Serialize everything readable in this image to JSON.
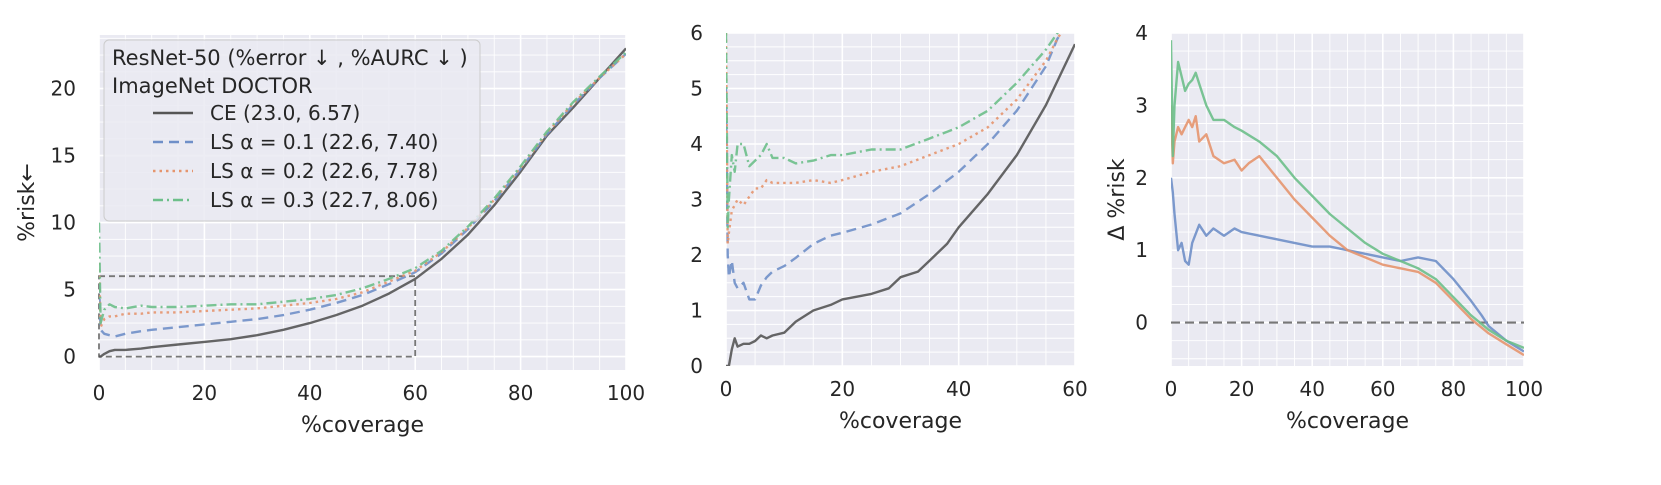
{
  "chart_data": [
    {
      "type": "line",
      "xlabel": "%coverage",
      "ylabel": "%risk←",
      "xlim": [
        0,
        100
      ],
      "ylim": [
        -1,
        24
      ],
      "xticks": [
        0,
        20,
        40,
        60,
        80,
        100
      ],
      "yticks": [
        0,
        5,
        10,
        15,
        20
      ],
      "grid": true,
      "legend": {
        "placement": "top-left",
        "title_lines": [
          "ResNet-50 (%error ↓ , %AURC ↓ )",
          "ImageNet DOCTOR"
        ],
        "entries": [
          "CE (23.0, 6.57)",
          "LS α = 0.1 (22.6, 7.40)",
          "LS α = 0.2 (22.6, 7.78)",
          "LS α = 0.3 (22.7, 8.06)"
        ]
      },
      "zoom_box": {
        "x": [
          0,
          60
        ],
        "y": [
          0,
          6
        ]
      },
      "series": [
        {
          "label": "CE (23.0, 6.57)",
          "color": "#555555",
          "dash": "solid",
          "x": [
            0,
            0.3,
            1,
            2,
            3,
            5,
            8,
            10,
            15,
            20,
            25,
            30,
            35,
            40,
            45,
            50,
            55,
            60,
            65,
            70,
            75,
            80,
            85,
            90,
            95,
            100
          ],
          "y": [
            0,
            0,
            0.2,
            0.4,
            0.5,
            0.5,
            0.6,
            0.7,
            0.9,
            1.1,
            1.3,
            1.6,
            2.0,
            2.5,
            3.1,
            3.8,
            4.7,
            5.8,
            7.3,
            9.1,
            11.3,
            13.8,
            16.5,
            18.6,
            20.8,
            23.0
          ]
        },
        {
          "label": "LS α = 0.1 (22.6, 7.40)",
          "color": "#6f8fc8",
          "dash": "dashed",
          "x": [
            0,
            0.3,
            1,
            2,
            3,
            5,
            8,
            10,
            15,
            20,
            25,
            30,
            35,
            40,
            45,
            50,
            55,
            60,
            65,
            70,
            75,
            80,
            85,
            90,
            95,
            100
          ],
          "y": [
            5.5,
            2.0,
            1.7,
            1.6,
            1.5,
            1.7,
            1.9,
            2.0,
            2.2,
            2.4,
            2.6,
            2.8,
            3.1,
            3.5,
            4.0,
            4.6,
            5.4,
            6.3,
            7.7,
            9.5,
            11.6,
            14.0,
            16.6,
            18.8,
            20.8,
            22.6
          ]
        },
        {
          "label": "LS α = 0.2 (22.6, 7.78)",
          "color": "#e5956e",
          "dash": "dotted",
          "x": [
            0,
            0.3,
            1,
            2,
            3,
            5,
            8,
            10,
            15,
            20,
            25,
            30,
            35,
            40,
            45,
            50,
            55,
            60,
            65,
            70,
            75,
            80,
            85,
            90,
            95,
            100
          ],
          "y": [
            7.0,
            2.2,
            2.8,
            3.0,
            3.0,
            3.2,
            3.2,
            3.3,
            3.3,
            3.4,
            3.5,
            3.6,
            3.8,
            4.0,
            4.3,
            4.8,
            5.6,
            6.4,
            7.8,
            9.6,
            11.7,
            14.1,
            16.7,
            18.9,
            20.8,
            22.6
          ]
        },
        {
          "label": "LS α = 0.3 (22.7, 8.06)",
          "color": "#6dbf8a",
          "dash": "dashdot",
          "x": [
            0,
            0.3,
            1,
            2,
            3,
            5,
            8,
            10,
            15,
            20,
            25,
            30,
            35,
            40,
            45,
            50,
            55,
            60,
            65,
            70,
            75,
            80,
            85,
            90,
            95,
            100
          ],
          "y": [
            10.0,
            2.5,
            3.5,
            3.9,
            3.7,
            3.6,
            3.8,
            3.7,
            3.7,
            3.8,
            3.9,
            3.9,
            4.1,
            4.3,
            4.6,
            5.1,
            5.8,
            6.6,
            7.9,
            9.7,
            11.8,
            14.2,
            16.8,
            19.0,
            20.9,
            22.7
          ]
        }
      ]
    },
    {
      "type": "line",
      "xlabel": "%coverage",
      "ylabel": "",
      "xlim": [
        0,
        60
      ],
      "ylim": [
        0,
        6
      ],
      "xticks": [
        0,
        20,
        40,
        60
      ],
      "yticks": [
        0,
        1,
        2,
        3,
        4,
        5,
        6
      ],
      "grid": true,
      "series": [
        {
          "label": "CE (23.0, 6.57)",
          "color": "#555555",
          "dash": "solid",
          "x": [
            0,
            0.5,
            1,
            1.5,
            2,
            3,
            4,
            5,
            6,
            7,
            8,
            10,
            12,
            15,
            18,
            20,
            25,
            28,
            30,
            33,
            35,
            38,
            40,
            45,
            50,
            55,
            60
          ],
          "y": [
            0,
            0,
            0.3,
            0.5,
            0.35,
            0.4,
            0.4,
            0.45,
            0.55,
            0.5,
            0.55,
            0.6,
            0.8,
            1.0,
            1.1,
            1.2,
            1.3,
            1.4,
            1.6,
            1.7,
            1.9,
            2.2,
            2.5,
            3.1,
            3.8,
            4.7,
            5.8
          ]
        },
        {
          "label": "LS α = 0.1 (22.6, 7.40)",
          "color": "#6f8fc8",
          "dash": "dashed",
          "x": [
            0,
            0.3,
            0.5,
            1,
            1.5,
            2,
            3,
            4,
            5,
            6,
            7,
            8,
            10,
            12,
            15,
            18,
            20,
            25,
            30,
            35,
            40,
            45,
            50,
            55,
            57,
            60
          ],
          "y": [
            5.0,
            2.0,
            1.6,
            1.9,
            1.5,
            1.4,
            1.5,
            1.2,
            1.2,
            1.45,
            1.6,
            1.7,
            1.8,
            1.95,
            2.2,
            2.35,
            2.4,
            2.55,
            2.75,
            3.1,
            3.5,
            4.0,
            4.6,
            5.4,
            5.9,
            6.3
          ]
        },
        {
          "label": "LS α = 0.2 (22.6, 7.78)",
          "color": "#e5956e",
          "dash": "dotted",
          "x": [
            0,
            0.3,
            0.5,
            1,
            1.5,
            2,
            3,
            4,
            5,
            6,
            7,
            8,
            10,
            12,
            15,
            18,
            20,
            25,
            30,
            35,
            40,
            45,
            50,
            55,
            57,
            60
          ],
          "y": [
            6.0,
            2.2,
            2.4,
            2.8,
            2.9,
            3.0,
            2.9,
            3.05,
            3.2,
            3.2,
            3.35,
            3.3,
            3.3,
            3.3,
            3.35,
            3.3,
            3.35,
            3.5,
            3.6,
            3.8,
            4.0,
            4.3,
            4.8,
            5.5,
            5.9,
            6.4
          ]
        },
        {
          "label": "LS α = 0.3 (22.7, 8.06)",
          "color": "#6dbf8a",
          "dash": "dashdot",
          "x": [
            0,
            0.3,
            0.5,
            1,
            1.5,
            2,
            3,
            4,
            5,
            6,
            7,
            8,
            10,
            12,
            15,
            18,
            20,
            25,
            30,
            35,
            40,
            45,
            50,
            55,
            57,
            60
          ],
          "y": [
            6.0,
            2.5,
            3.0,
            3.8,
            3.5,
            4.0,
            4.0,
            3.6,
            3.7,
            3.8,
            4.0,
            3.75,
            3.75,
            3.65,
            3.7,
            3.8,
            3.8,
            3.9,
            3.9,
            4.1,
            4.3,
            4.6,
            5.1,
            5.7,
            6.0,
            6.6
          ]
        }
      ]
    },
    {
      "type": "line",
      "xlabel": "%coverage",
      "ylabel": "Δ %risk",
      "xlim": [
        0,
        100
      ],
      "ylim": [
        -0.6,
        4
      ],
      "xticks": [
        0,
        20,
        40,
        60,
        80,
        100
      ],
      "yticks": [
        0,
        1,
        2,
        3,
        4
      ],
      "grid": true,
      "reference_line": {
        "y": 0,
        "color": "#777777",
        "dash": "dashed"
      },
      "series": [
        {
          "label": "LS α = 0.1 (22.6, 7.40)",
          "color": "#6f8fc8",
          "dash": "solid",
          "x": [
            0,
            0.5,
            1,
            2,
            3,
            4,
            5,
            6,
            8,
            10,
            12,
            15,
            18,
            20,
            25,
            30,
            35,
            40,
            45,
            50,
            55,
            60,
            65,
            70,
            75,
            80,
            85,
            88,
            90,
            95,
            100
          ],
          "y": [
            2.0,
            1.8,
            1.5,
            1.0,
            1.1,
            0.85,
            0.8,
            1.1,
            1.35,
            1.2,
            1.3,
            1.2,
            1.3,
            1.25,
            1.2,
            1.15,
            1.1,
            1.05,
            1.05,
            1.0,
            0.95,
            0.9,
            0.85,
            0.9,
            0.85,
            0.6,
            0.3,
            0.1,
            -0.05,
            -0.25,
            -0.4
          ]
        },
        {
          "label": "LS α = 0.2 (22.6, 7.78)",
          "color": "#e5956e",
          "dash": "solid",
          "x": [
            0,
            0.5,
            1,
            2,
            3,
            4,
            5,
            6,
            7,
            8,
            10,
            12,
            15,
            18,
            20,
            22,
            25,
            30,
            35,
            40,
            45,
            50,
            55,
            60,
            65,
            70,
            75,
            80,
            85,
            90,
            95,
            100
          ],
          "y": [
            3.0,
            2.2,
            2.5,
            2.7,
            2.6,
            2.7,
            2.8,
            2.7,
            2.85,
            2.5,
            2.6,
            2.3,
            2.2,
            2.25,
            2.1,
            2.2,
            2.3,
            2.0,
            1.7,
            1.45,
            1.2,
            1.0,
            0.9,
            0.8,
            0.75,
            0.7,
            0.55,
            0.3,
            0.05,
            -0.15,
            -0.3,
            -0.45
          ]
        },
        {
          "label": "LS α = 0.3 (22.7, 8.06)",
          "color": "#6dbf8a",
          "dash": "solid",
          "x": [
            0,
            0.5,
            1,
            2,
            3,
            4,
            5,
            6,
            7,
            8,
            10,
            12,
            15,
            18,
            20,
            25,
            30,
            35,
            40,
            45,
            50,
            55,
            60,
            65,
            70,
            75,
            80,
            85,
            90,
            95,
            100
          ],
          "y": [
            3.9,
            2.3,
            3.0,
            3.6,
            3.4,
            3.2,
            3.3,
            3.35,
            3.45,
            3.3,
            3.0,
            2.8,
            2.8,
            2.7,
            2.65,
            2.5,
            2.3,
            2.0,
            1.75,
            1.5,
            1.3,
            1.1,
            0.95,
            0.85,
            0.75,
            0.6,
            0.35,
            0.1,
            -0.1,
            -0.25,
            -0.35
          ]
        }
      ]
    }
  ]
}
